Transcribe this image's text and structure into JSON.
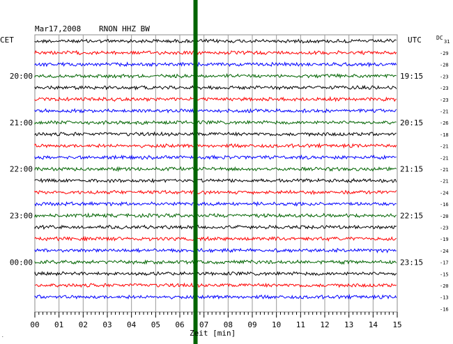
{
  "header": {
    "date": "Mar17,2008",
    "station": "RNON HHZ BW",
    "left_timezone": "CET",
    "right_timezone": "UTC",
    "dc_label": "DC",
    "dc_first": "31"
  },
  "chart_data": {
    "type": "line",
    "title": "Mar17,2008   RNON HHZ BW",
    "xlabel": "Zeit [min]",
    "ylabel": "",
    "xlim": [
      0,
      15
    ],
    "x_ticks": [
      "00",
      "01",
      "02",
      "03",
      "04",
      "05",
      "06",
      "07",
      "08",
      "09",
      "10",
      "11",
      "12",
      "13",
      "14",
      "15"
    ],
    "trace_colors": [
      "#000000",
      "#ff0000",
      "#0000ff",
      "#006400"
    ],
    "event_line": {
      "x": 6.65,
      "color": "#006400"
    },
    "rows": [
      {
        "cet": "",
        "utc": "",
        "dc": "-29"
      },
      {
        "cet": "",
        "utc": "",
        "dc": "-28"
      },
      {
        "cet": "",
        "utc": "",
        "dc": "-23"
      },
      {
        "cet": "20:00",
        "utc": "19:15",
        "dc": "-23"
      },
      {
        "cet": "",
        "utc": "",
        "dc": "-23"
      },
      {
        "cet": "",
        "utc": "",
        "dc": "-21"
      },
      {
        "cet": "",
        "utc": "",
        "dc": "-26"
      },
      {
        "cet": "21:00",
        "utc": "20:15",
        "dc": "-18"
      },
      {
        "cet": "",
        "utc": "",
        "dc": "-21"
      },
      {
        "cet": "",
        "utc": "",
        "dc": "-21"
      },
      {
        "cet": "",
        "utc": "",
        "dc": "-21"
      },
      {
        "cet": "22:00",
        "utc": "21:15",
        "dc": "-21"
      },
      {
        "cet": "",
        "utc": "",
        "dc": "-24"
      },
      {
        "cet": "",
        "utc": "",
        "dc": "-16"
      },
      {
        "cet": "",
        "utc": "",
        "dc": "-20"
      },
      {
        "cet": "23:00",
        "utc": "22:15",
        "dc": "-23"
      },
      {
        "cet": "",
        "utc": "",
        "dc": "-19"
      },
      {
        "cet": "",
        "utc": "",
        "dc": "-24"
      },
      {
        "cet": "",
        "utc": "",
        "dc": "-17"
      },
      {
        "cet": "00:00",
        "utc": "23:15",
        "dc": "-15"
      },
      {
        "cet": "",
        "utc": "",
        "dc": "-20"
      },
      {
        "cet": "",
        "utc": "",
        "dc": "-13"
      },
      {
        "cet": "",
        "utc": "",
        "dc": "-16"
      }
    ]
  }
}
